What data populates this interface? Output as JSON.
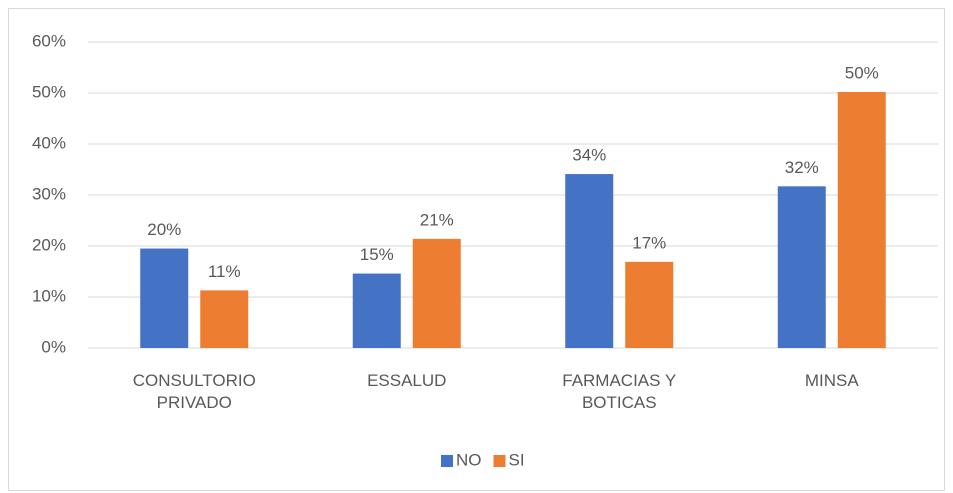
{
  "chart_data": {
    "type": "bar",
    "categories": [
      "CONSULTORIO PRIVADO",
      "ESSALUD",
      "FARMACIAS Y BOTICAS",
      "MINSA"
    ],
    "series": [
      {
        "name": "NO",
        "color": "#4472c4",
        "values": [
          19.5,
          14.6,
          34.1,
          31.7
        ],
        "value_labels": [
          "20%",
          "15%",
          "34%",
          "32%"
        ]
      },
      {
        "name": "SI",
        "color": "#ed7d31",
        "values": [
          11.3,
          21.4,
          16.9,
          50.2
        ],
        "value_labels": [
          "11%",
          "21%",
          "17%",
          "50%"
        ]
      }
    ],
    "ylim": [
      0,
      60
    ],
    "yticks": [
      {
        "value": 0,
        "label": "0%"
      },
      {
        "value": 10,
        "label": "10%"
      },
      {
        "value": 20,
        "label": "20%"
      },
      {
        "value": 30,
        "label": "30%"
      },
      {
        "value": 40,
        "label": "40%"
      },
      {
        "value": 50,
        "label": "50%"
      },
      {
        "value": 60,
        "label": "60%"
      }
    ],
    "grid": true,
    "legend": "bottom"
  }
}
